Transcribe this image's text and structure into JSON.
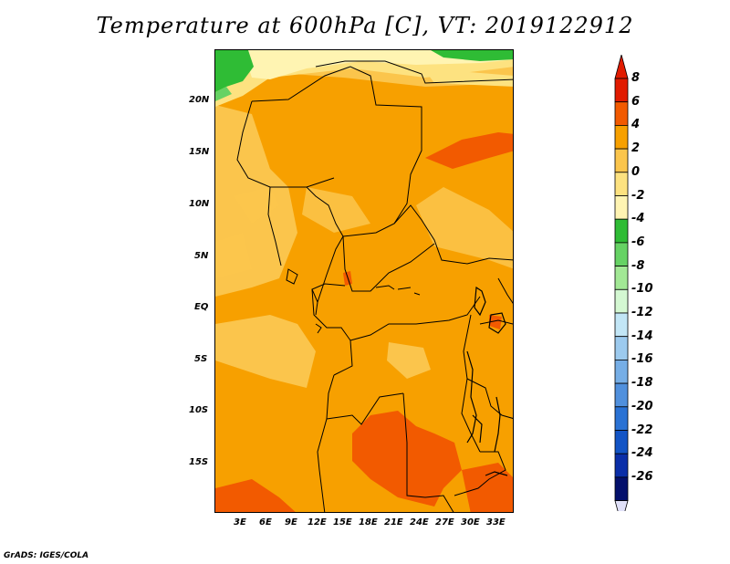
{
  "title": "Temperature at 600hPa [C], VT: 2019122912",
  "credit": "GrADS: IGES/COLA",
  "map": {
    "lon_range": [
      0,
      35
    ],
    "lat_range": [
      -20,
      25
    ],
    "lat_ticks": [
      {
        "value": 20,
        "label": "20N"
      },
      {
        "value": 15,
        "label": "15N"
      },
      {
        "value": 10,
        "label": "10N"
      },
      {
        "value": 5,
        "label": "5N"
      },
      {
        "value": 0,
        "label": "EQ"
      },
      {
        "value": -5,
        "label": "5S"
      },
      {
        "value": -10,
        "label": "10S"
      },
      {
        "value": -15,
        "label": "15S"
      }
    ],
    "lon_ticks": [
      {
        "value": 3,
        "label": "3E"
      },
      {
        "value": 6,
        "label": "6E"
      },
      {
        "value": 9,
        "label": "9E"
      },
      {
        "value": 12,
        "label": "12E"
      },
      {
        "value": 15,
        "label": "15E"
      },
      {
        "value": 18,
        "label": "18E"
      },
      {
        "value": 21,
        "label": "21E"
      },
      {
        "value": 24,
        "label": "24E"
      },
      {
        "value": 27,
        "label": "27E"
      },
      {
        "value": 30,
        "label": "30E"
      },
      {
        "value": 33,
        "label": "33E"
      }
    ]
  },
  "colorbar": {
    "labels": [
      "8",
      "6",
      "4",
      "2",
      "0",
      "-2",
      "-4",
      "-6",
      "-8",
      "-10",
      "-12",
      "-14",
      "-16",
      "-18",
      "-20",
      "-22",
      "-24",
      "-26"
    ],
    "colors": [
      "#e11b00",
      "#f25a00",
      "#f7a000",
      "#fbc54c",
      "#fde280",
      "#fff4b2",
      "#2fbc35",
      "#66d264",
      "#a2e895",
      "#d4f8d2",
      "#c2e6f6",
      "#9ccaee",
      "#76aee6",
      "#5090dd",
      "#2a72d4",
      "#1254c5",
      "#0a2ea8",
      "#04106c"
    ],
    "top_arrow_color": "#e11b00",
    "bottom_arrow_color": "#e0e0f8"
  },
  "regions": [
    {
      "name": "green-cold-nw",
      "color": "#2fbc35"
    },
    {
      "name": "green-cold-n",
      "color": "#2fbc35"
    },
    {
      "name": "light-yellow-north",
      "color": "#fff4b2"
    },
    {
      "name": "yellow-north",
      "color": "#fde280"
    },
    {
      "name": "orange-warm",
      "color": "#f7a000"
    },
    {
      "name": "red-warm",
      "color": "#f25a00"
    }
  ]
}
